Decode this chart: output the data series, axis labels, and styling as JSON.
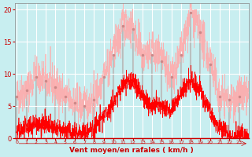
{
  "background_color": "#c8eef0",
  "grid_color": "#ffffff",
  "line_color_avg": "#ff0000",
  "line_color_gust": "#ffaaaa",
  "marker_color": "#cc8888",
  "xlabel": "Vent moyen/en rafales ( km/h )",
  "ylim": [
    0,
    21
  ],
  "yticks": [
    0,
    5,
    10,
    15,
    20
  ],
  "xtick_labels": [
    "0",
    "1",
    "2",
    "3",
    "4",
    "5",
    "6",
    "7",
    "8",
    "9",
    "10",
    "11",
    "12",
    "13",
    "14",
    "15",
    "16",
    "17",
    "18",
    "19",
    "20",
    "21",
    "22",
    "23"
  ],
  "n_points": 1440,
  "hours": 24,
  "gust_hour_peaks": [
    6.5,
    7.5,
    9.5,
    9.0,
    8.0,
    6.5,
    5.5,
    5.0,
    6.0,
    9.5,
    13.0,
    17.5,
    17.0,
    13.0,
    13.0,
    12.0,
    9.5,
    13.0,
    19.5,
    16.5,
    11.5,
    6.5,
    6.0,
    6.5
  ],
  "avg_hour_peaks": [
    1.0,
    1.5,
    2.5,
    2.0,
    1.5,
    1.0,
    1.0,
    1.0,
    1.5,
    3.5,
    5.5,
    8.5,
    9.0,
    6.5,
    5.0,
    5.0,
    4.5,
    7.0,
    9.0,
    7.5,
    4.0,
    1.5,
    0.5,
    0.5
  ]
}
